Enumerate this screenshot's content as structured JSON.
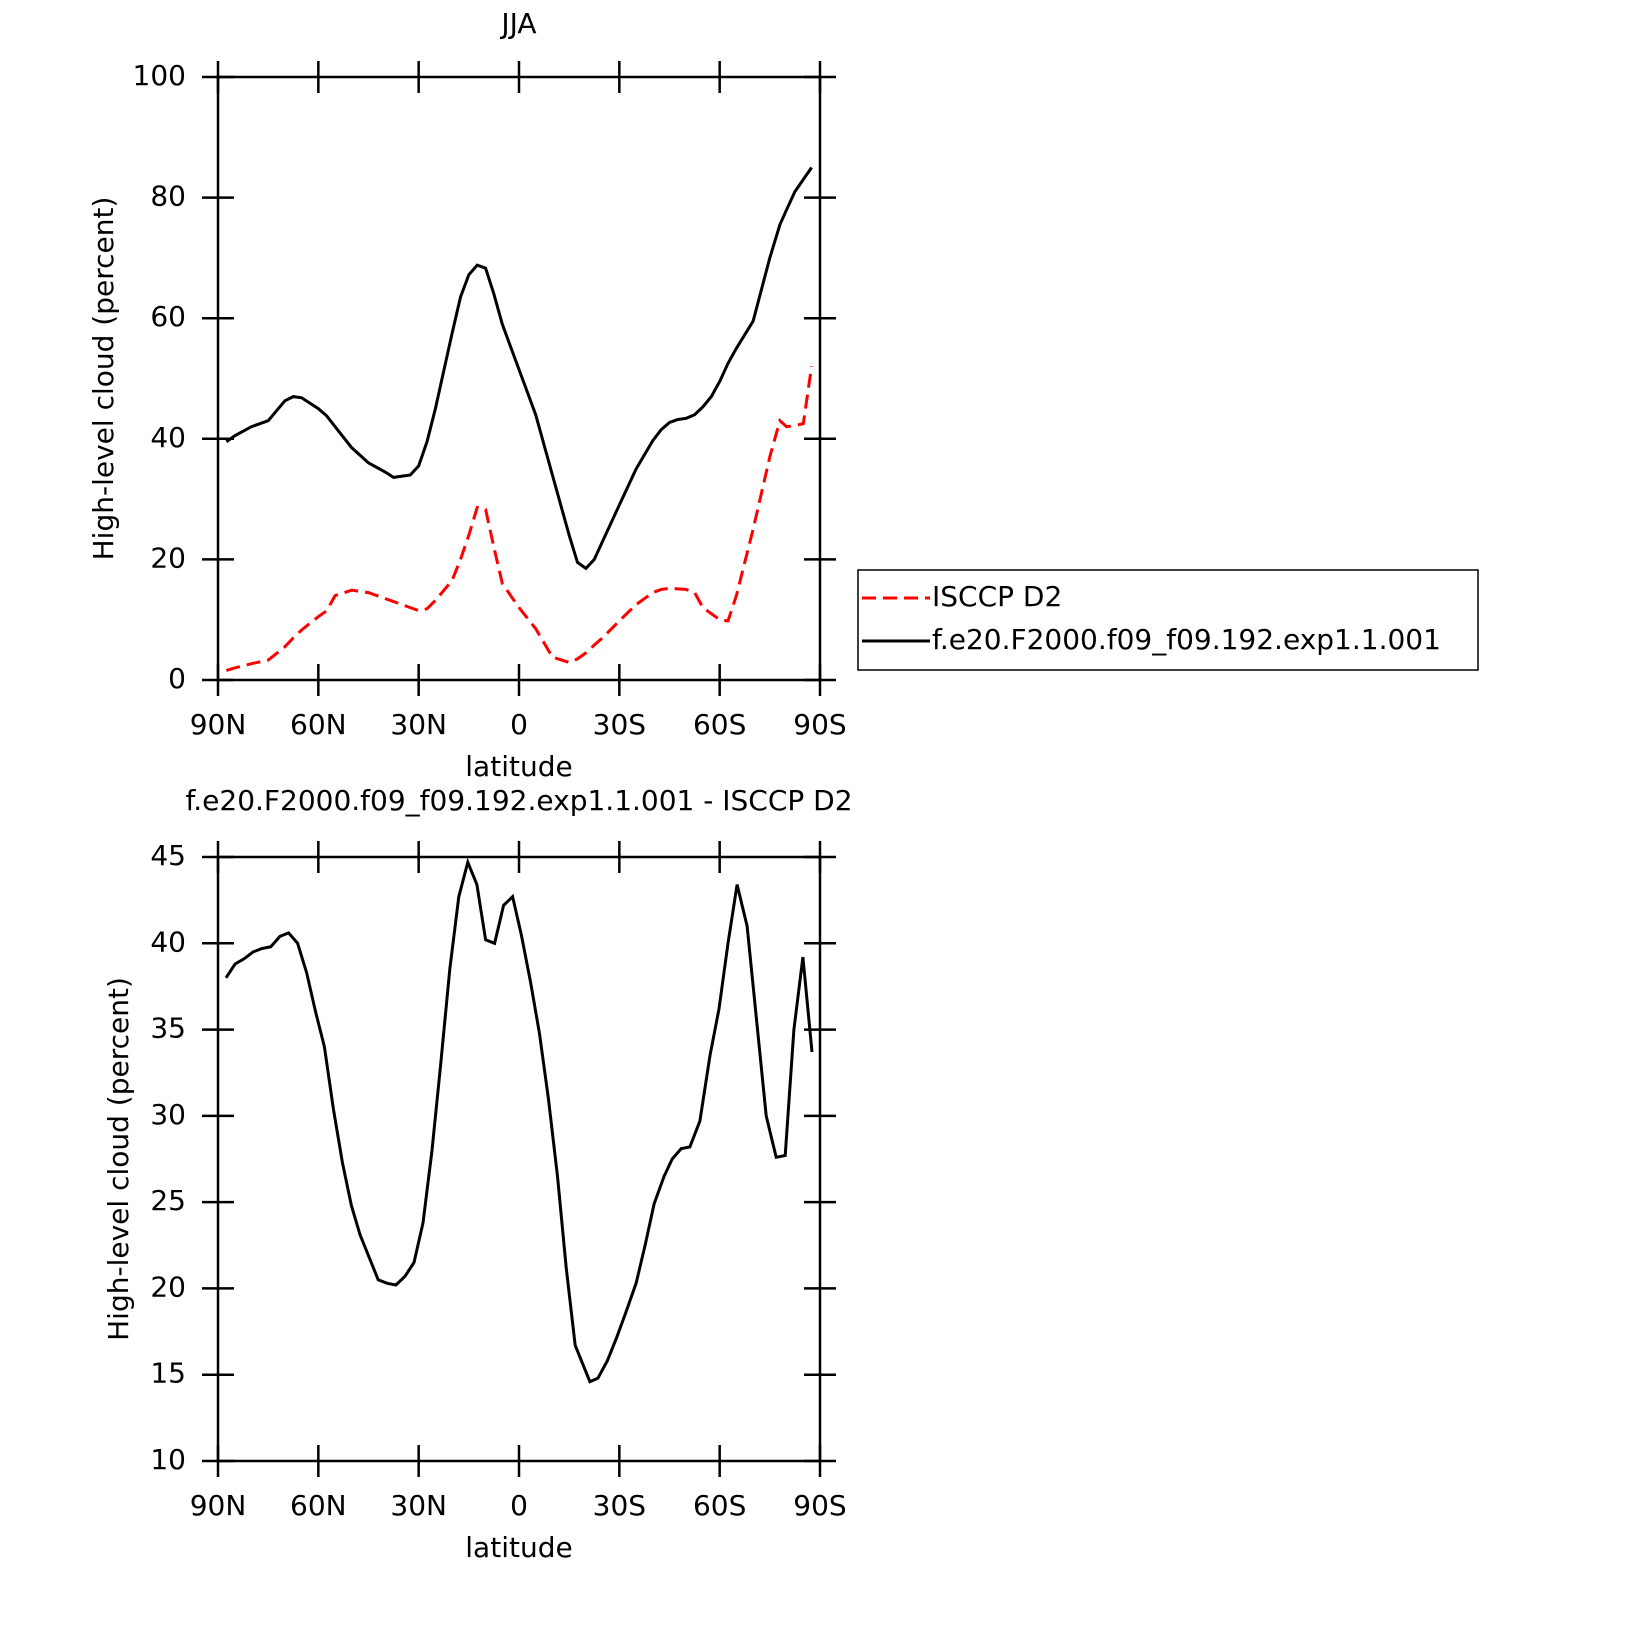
{
  "chart_data": [
    {
      "type": "line",
      "title": "JJA",
      "xlabel": "latitude",
      "ylabel": "High-level cloud (percent)",
      "x": [
        87.5,
        85,
        80,
        75,
        70,
        67.5,
        65,
        60,
        57.5,
        55,
        50,
        45,
        40,
        37.5,
        32.5,
        30,
        27.5,
        25,
        20,
        17.5,
        15,
        12.5,
        10,
        7.5,
        5,
        0,
        -5,
        -10,
        -15,
        -17.5,
        -20,
        -22.5,
        -25,
        -30,
        -35,
        -40,
        -42.5,
        -45,
        -47.5,
        -50,
        -52.5,
        -55,
        -57.5,
        -60,
        -62.5,
        -65,
        -70,
        -75,
        -78,
        -80,
        -82.5,
        -85,
        -87.5
      ],
      "series": [
        {
          "name": "ISCCP D2",
          "color": "#ff0000",
          "dash": true,
          "values": [
            1.6,
            2,
            2.7,
            3.3,
            5.5,
            7,
            8.3,
            10.5,
            11.5,
            14,
            14.9,
            14.5,
            13.5,
            13,
            12,
            11.5,
            11.8,
            13.2,
            16.5,
            20,
            24,
            28.6,
            28.3,
            22,
            16,
            12,
            8.5,
            3.8,
            2.9,
            3.5,
            4.5,
            5.8,
            7,
            9.8,
            12.5,
            14.5,
            15,
            15.2,
            15.1,
            15,
            14.5,
            12,
            11,
            10,
            9.8,
            14,
            25,
            37,
            43,
            42,
            42.2,
            42.5,
            52
          ]
        },
        {
          "name": "f.e20.F2000.f09_f09.192.exp1.1.001",
          "color": "#000000",
          "dash": false,
          "values": [
            39.5,
            40.5,
            42,
            43,
            46.3,
            47,
            46.8,
            45,
            43.8,
            42,
            38.5,
            36,
            34.5,
            33.6,
            34,
            35.5,
            39.5,
            45,
            57.5,
            63.5,
            67.2,
            68.8,
            68.3,
            64,
            59,
            51.5,
            44,
            34,
            24,
            19.5,
            18.5,
            20,
            23,
            29,
            35,
            39.7,
            41.5,
            42.7,
            43.2,
            43.4,
            44,
            45.3,
            47,
            49.5,
            52.5,
            55,
            59.5,
            70,
            75.5,
            78,
            81,
            83,
            85
          ]
        }
      ],
      "xlim": [
        90,
        -90
      ],
      "xticks": [
        {
          "value": 90,
          "label": "90N"
        },
        {
          "value": 60,
          "label": "60N"
        },
        {
          "value": 30,
          "label": "30N"
        },
        0,
        {
          "value": -30,
          "label": "30S"
        },
        {
          "value": -60,
          "label": "60S"
        },
        {
          "value": -90,
          "label": "90S"
        }
      ],
      "ylim": [
        0,
        100
      ],
      "yticks": [
        0,
        20,
        40,
        60,
        80,
        100
      ],
      "legend": "right"
    },
    {
      "type": "line",
      "title": "f.e20.F2000.f09_f09.192.exp1.1.001 - ISCCP D2",
      "xlabel": "latitude",
      "ylabel": "High-level cloud (percent)",
      "x": [
        87.6,
        84.9,
        82.2,
        79.5,
        76.8,
        74.2,
        71.5,
        68.9,
        66.2,
        63.5,
        60.8,
        58.2,
        55.5,
        52.8,
        50.1,
        47.5,
        44.8,
        42.1,
        39.4,
        36.8,
        34.1,
        31.4,
        28.7,
        26,
        23.4,
        20.7,
        18,
        15.3,
        12.6,
        10,
        7.3,
        4.6,
        1.9,
        -0.7,
        -3.4,
        -6.1,
        -8.8,
        -11.5,
        -14.1,
        -16.8,
        -21.2,
        -23.6,
        -26.4,
        -29.3,
        -32.1,
        -35,
        -37.7,
        -40.4,
        -43.4,
        -45.8,
        -48.5,
        -51.1,
        -54.1,
        -57.1,
        -59.8,
        -62.5,
        -65.2,
        -68.2,
        -73.9,
        -76.9,
        -79.6,
        -82.2,
        -84.9,
        -87.6
      ],
      "series": [
        {
          "name": null,
          "color": "#000000",
          "dash": false,
          "values": [
            38,
            38.8,
            39.1,
            39.5,
            39.7,
            39.8,
            40.4,
            40.6,
            40,
            38.3,
            36,
            34,
            30.4,
            27.3,
            24.8,
            23.1,
            21.8,
            20.5,
            20.3,
            20.2,
            20.7,
            21.5,
            23.8,
            28,
            33,
            38.5,
            42.7,
            44.7,
            43.4,
            40.2,
            40,
            42.2,
            42.7,
            40.5,
            37.8,
            34.8,
            31,
            26.5,
            21.2,
            16.7,
            14.6,
            14.8,
            15.8,
            17.2,
            18.7,
            20.3,
            22.5,
            24.9,
            26.5,
            27.5,
            28.1,
            28.2,
            29.7,
            33.5,
            36.2,
            40,
            43.4,
            41,
            30,
            27.6,
            27.7,
            35,
            39.2,
            33.7
          ]
        }
      ],
      "xlim": [
        90,
        -90
      ],
      "xticks": [
        {
          "value": 90,
          "label": "90N"
        },
        {
          "value": 60,
          "label": "60N"
        },
        {
          "value": 30,
          "label": "30N"
        },
        0,
        {
          "value": -30,
          "label": "30S"
        },
        {
          "value": -60,
          "label": "60S"
        },
        {
          "value": -90,
          "label": "90S"
        }
      ],
      "ylim": [
        10,
        45
      ],
      "yticks": [
        10,
        15,
        20,
        25,
        30,
        35,
        40,
        45
      ]
    }
  ]
}
